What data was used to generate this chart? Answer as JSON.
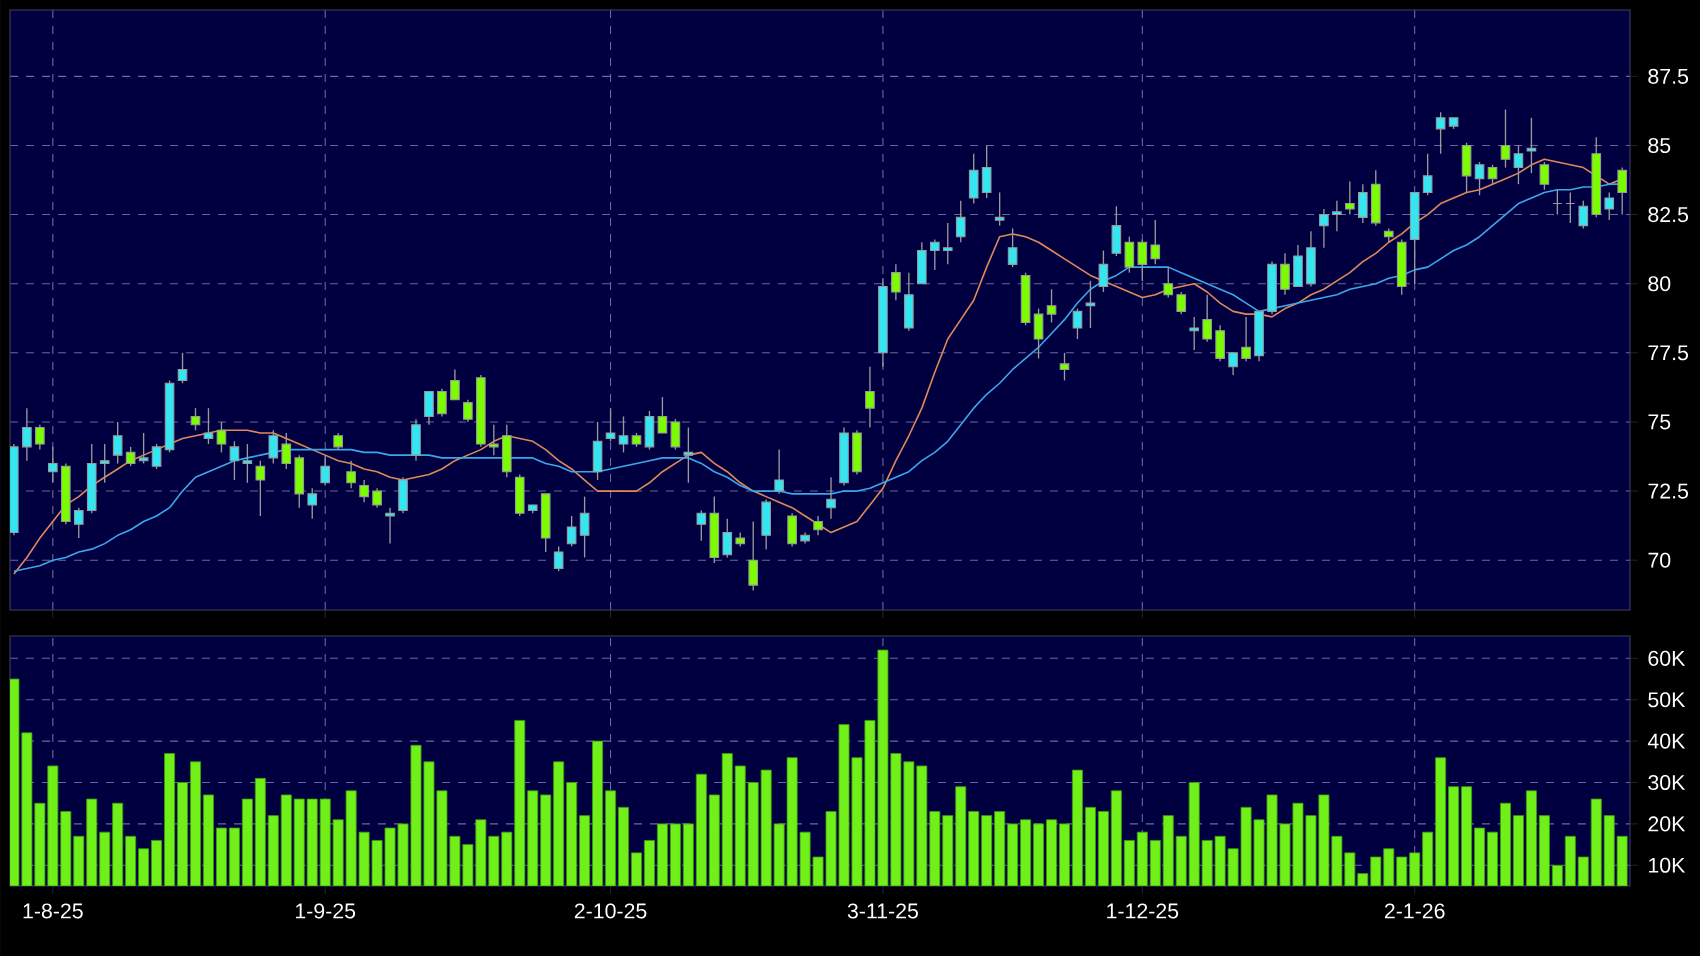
{
  "chart_data": [
    {
      "type": "candlestick",
      "categories": [
        null,
        null,
        null,
        null,
        null,
        null,
        null,
        null,
        null,
        null,
        null,
        null,
        null,
        null,
        null,
        null,
        null,
        null,
        null,
        null,
        null,
        null,
        null,
        null,
        null,
        null,
        null,
        null,
        null,
        null,
        null,
        null,
        null,
        null,
        null,
        null,
        null,
        null,
        null,
        null,
        null,
        null,
        null,
        null,
        null,
        null,
        null,
        null,
        null,
        null,
        null,
        null,
        null,
        null,
        null,
        null,
        null,
        null,
        null,
        null,
        null,
        null,
        null,
        null,
        null,
        null,
        null,
        null,
        null,
        null,
        null,
        null,
        null,
        null,
        null,
        null,
        null,
        null,
        null,
        null,
        null,
        null,
        null,
        null,
        null,
        null,
        null,
        null,
        null,
        null,
        null,
        null,
        null,
        null,
        null,
        null,
        null,
        null,
        null,
        null,
        null,
        null,
        null,
        null,
        null,
        null,
        null,
        null,
        null,
        null,
        null,
        null,
        null,
        null,
        null,
        null,
        null,
        null,
        null,
        null,
        null,
        null,
        null,
        null,
        null
      ],
      "ohlc": [
        [
          71.0,
          74.2,
          70.9,
          74.1
        ],
        [
          74.1,
          75.5,
          73.6,
          74.8
        ],
        [
          74.8,
          74.9,
          74.0,
          74.2
        ],
        [
          73.2,
          74.1,
          72.8,
          73.5
        ],
        [
          73.4,
          73.5,
          71.3,
          71.4
        ],
        [
          71.3,
          71.9,
          70.8,
          71.8
        ],
        [
          71.8,
          74.2,
          71.7,
          73.5
        ],
        [
          73.5,
          74.2,
          72.8,
          73.6
        ],
        [
          73.8,
          75.0,
          73.5,
          74.5
        ],
        [
          73.9,
          74.1,
          73.4,
          73.5
        ],
        [
          73.6,
          74.6,
          73.5,
          73.7
        ],
        [
          73.4,
          74.2,
          73.3,
          74.1
        ],
        [
          74.0,
          76.5,
          73.9,
          76.4
        ],
        [
          76.5,
          77.5,
          76.4,
          76.9
        ],
        [
          75.2,
          75.5,
          74.7,
          74.9
        ],
        [
          74.4,
          75.5,
          74.2,
          74.6
        ],
        [
          74.7,
          75.0,
          73.9,
          74.2
        ],
        [
          73.6,
          74.3,
          72.9,
          74.1
        ],
        [
          73.5,
          74.2,
          72.8,
          73.6
        ],
        [
          73.4,
          73.6,
          71.6,
          72.9
        ],
        [
          73.7,
          74.7,
          73.5,
          74.5
        ],
        [
          74.2,
          74.6,
          73.3,
          73.5
        ],
        [
          73.7,
          73.8,
          71.9,
          72.4
        ],
        [
          72.0,
          72.6,
          71.5,
          72.4
        ],
        [
          72.8,
          73.8,
          72.7,
          73.4
        ],
        [
          74.5,
          74.6,
          74.0,
          74.1
        ],
        [
          73.2,
          73.6,
          72.6,
          72.8
        ],
        [
          72.7,
          72.9,
          72.1,
          72.3
        ],
        [
          72.5,
          72.6,
          71.9,
          72.0
        ],
        [
          71.6,
          71.9,
          70.6,
          71.7
        ],
        [
          71.8,
          73.0,
          71.7,
          72.9
        ],
        [
          73.8,
          75.1,
          73.6,
          74.9
        ],
        [
          75.2,
          76.1,
          74.9,
          76.1
        ],
        [
          76.1,
          76.2,
          75.2,
          75.3
        ],
        [
          76.5,
          76.9,
          75.8,
          75.8
        ],
        [
          75.7,
          75.8,
          75.0,
          75.1
        ],
        [
          76.6,
          76.7,
          74.1,
          74.2
        ],
        [
          74.2,
          74.9,
          73.8,
          74.1
        ],
        [
          74.5,
          74.9,
          73.0,
          73.2
        ],
        [
          73.0,
          73.1,
          71.6,
          71.7
        ],
        [
          71.8,
          72.0,
          71.7,
          72.0
        ],
        [
          72.4,
          72.4,
          70.3,
          70.8
        ],
        [
          69.7,
          70.5,
          69.6,
          70.3
        ],
        [
          70.6,
          71.6,
          70.5,
          71.2
        ],
        [
          70.9,
          72.3,
          70.1,
          71.7
        ],
        [
          73.2,
          75.0,
          72.9,
          74.3
        ],
        [
          74.4,
          75.5,
          74.3,
          74.6
        ],
        [
          74.2,
          75.2,
          73.9,
          74.5
        ],
        [
          74.5,
          74.6,
          74.1,
          74.2
        ],
        [
          74.1,
          75.4,
          74.0,
          75.2
        ],
        [
          75.2,
          75.9,
          74.6,
          74.6
        ],
        [
          75.0,
          75.1,
          74.0,
          74.1
        ],
        [
          73.8,
          74.8,
          72.8,
          73.9
        ],
        [
          71.3,
          71.8,
          70.7,
          71.7
        ],
        [
          71.7,
          72.3,
          69.9,
          70.1
        ],
        [
          70.2,
          71.5,
          70.1,
          71.0
        ],
        [
          70.8,
          71.0,
          70.5,
          70.6
        ],
        [
          70.0,
          71.4,
          68.9,
          69.1
        ],
        [
          70.9,
          72.2,
          70.4,
          72.1
        ],
        [
          72.5,
          74.0,
          72.4,
          72.9
        ],
        [
          71.6,
          71.7,
          70.5,
          70.6
        ],
        [
          70.7,
          71.0,
          70.6,
          70.9
        ],
        [
          71.4,
          71.6,
          70.9,
          71.1
        ],
        [
          71.9,
          73.0,
          71.5,
          72.2
        ],
        [
          72.8,
          74.8,
          72.7,
          74.6
        ],
        [
          74.6,
          74.7,
          73.1,
          73.2
        ],
        [
          76.1,
          77.0,
          74.8,
          75.5
        ],
        [
          77.5,
          80.2,
          77.0,
          79.9
        ],
        [
          80.4,
          80.7,
          79.4,
          79.7
        ],
        [
          78.4,
          80.4,
          78.3,
          79.6
        ],
        [
          80.0,
          81.5,
          80.0,
          81.2
        ],
        [
          81.2,
          81.6,
          80.5,
          81.5
        ],
        [
          81.2,
          82.2,
          80.7,
          81.3
        ],
        [
          81.7,
          83.0,
          81.5,
          82.4
        ],
        [
          83.1,
          84.7,
          82.9,
          84.1
        ],
        [
          83.3,
          85.0,
          83.1,
          84.2
        ],
        [
          82.3,
          83.3,
          82.1,
          82.4
        ],
        [
          80.7,
          82.0,
          80.6,
          81.3
        ],
        [
          80.3,
          80.4,
          78.5,
          78.6
        ],
        [
          78.9,
          79.1,
          77.3,
          78.0
        ],
        [
          79.2,
          79.8,
          78.6,
          78.9
        ],
        [
          77.1,
          77.5,
          76.5,
          76.9
        ],
        [
          78.4,
          79.1,
          78.0,
          79.0
        ],
        [
          79.2,
          80.1,
          78.4,
          79.3
        ],
        [
          79.9,
          81.2,
          79.7,
          80.7
        ],
        [
          81.1,
          82.8,
          81.0,
          82.1
        ],
        [
          81.5,
          81.7,
          80.4,
          80.6
        ],
        [
          81.5,
          81.6,
          80.1,
          80.7
        ],
        [
          81.4,
          82.3,
          80.7,
          80.9
        ],
        [
          80.0,
          80.6,
          79.5,
          79.6
        ],
        [
          79.6,
          79.7,
          78.9,
          79.0
        ],
        [
          78.3,
          78.8,
          77.6,
          78.4
        ],
        [
          78.7,
          79.6,
          77.9,
          78.0
        ],
        [
          78.3,
          78.5,
          77.2,
          77.3
        ],
        [
          77.0,
          77.5,
          76.7,
          77.5
        ],
        [
          77.7,
          78.8,
          77.2,
          77.3
        ],
        [
          77.4,
          79.0,
          77.2,
          79.0
        ],
        [
          79.0,
          80.8,
          78.9,
          80.7
        ],
        [
          80.7,
          81.1,
          79.6,
          79.8
        ],
        [
          79.9,
          81.4,
          79.9,
          81.0
        ],
        [
          80.0,
          81.9,
          79.9,
          81.3
        ],
        [
          82.1,
          82.7,
          81.3,
          82.5
        ],
        [
          82.5,
          83.0,
          81.9,
          82.6
        ],
        [
          82.9,
          83.7,
          82.5,
          82.7
        ],
        [
          82.4,
          83.6,
          82.2,
          83.3
        ],
        [
          83.6,
          84.1,
          82.1,
          82.2
        ],
        [
          81.9,
          82.0,
          81.5,
          81.7
        ],
        [
          81.5,
          81.6,
          79.6,
          79.9
        ],
        [
          81.6,
          83.3,
          80.0,
          83.3
        ],
        [
          83.3,
          84.7,
          83.2,
          83.9
        ],
        [
          85.6,
          86.2,
          84.7,
          86.0
        ],
        [
          85.7,
          86.0,
          85.6,
          86.0
        ],
        [
          85.0,
          85.1,
          83.3,
          83.9
        ],
        [
          83.8,
          84.4,
          83.2,
          84.3
        ],
        [
          84.2,
          84.3,
          83.6,
          83.8
        ],
        [
          85.0,
          86.3,
          84.2,
          84.5
        ],
        [
          84.2,
          85.0,
          83.6,
          84.7
        ],
        [
          84.8,
          86.0,
          84.0,
          84.9
        ],
        [
          84.3,
          84.4,
          83.4,
          83.6
        ],
        [
          82.9,
          83.4,
          82.5,
          82.9
        ],
        [
          82.9,
          83.3,
          82.2,
          82.9
        ],
        [
          82.1,
          83.0,
          82.0,
          82.8
        ],
        [
          84.7,
          85.3,
          82.4,
          82.5
        ],
        [
          82.7,
          83.3,
          82.3,
          83.1
        ],
        [
          84.1,
          84.2,
          82.5,
          83.3
        ]
      ],
      "colors": [
        "#33e6f2",
        "#33e6f2",
        "#7cfc00",
        "#33e6f2",
        "#7cfc00",
        "#33e6f2",
        "#33e6f2",
        "#33e6f2",
        "#33e6f2",
        "#7cfc00",
        "#33e6f2",
        "#33e6f2",
        "#33e6f2",
        "#33e6f2",
        "#7cfc00",
        "#33e6f2",
        "#7cfc00",
        "#33e6f2",
        "#33e6f2",
        "#7cfc00",
        "#33e6f2",
        "#7cfc00",
        "#7cfc00",
        "#33e6f2",
        "#33e6f2",
        "#7cfc00",
        "#7cfc00",
        "#7cfc00",
        "#7cfc00",
        "#33e6f2",
        "#33e6f2",
        "#33e6f2",
        "#33e6f2",
        "#7cfc00",
        "#7cfc00",
        "#7cfc00",
        "#7cfc00",
        "#7cfc00",
        "#7cfc00",
        "#7cfc00",
        "#33e6f2",
        "#7cfc00",
        "#33e6f2",
        "#33e6f2",
        "#33e6f2",
        "#33e6f2",
        "#33e6f2",
        "#33e6f2",
        "#7cfc00",
        "#33e6f2",
        "#7cfc00",
        "#7cfc00",
        "#33e6f2",
        "#33e6f2",
        "#7cfc00",
        "#33e6f2",
        "#7cfc00",
        "#7cfc00",
        "#33e6f2",
        "#33e6f2",
        "#7cfc00",
        "#33e6f2",
        "#7cfc00",
        "#33e6f2",
        "#33e6f2",
        "#7cfc00",
        "#7cfc00",
        "#33e6f2",
        "#7cfc00",
        "#33e6f2",
        "#33e6f2",
        "#33e6f2",
        "#33e6f2",
        "#33e6f2",
        "#33e6f2",
        "#33e6f2",
        "#33e6f2",
        "#33e6f2",
        "#7cfc00",
        "#7cfc00",
        "#7cfc00",
        "#7cfc00",
        "#33e6f2",
        "#33e6f2",
        "#33e6f2",
        "#33e6f2",
        "#7cfc00",
        "#7cfc00",
        "#7cfc00",
        "#7cfc00",
        "#7cfc00",
        "#33e6f2",
        "#7cfc00",
        "#7cfc00",
        "#33e6f2",
        "#7cfc00",
        "#33e6f2",
        "#33e6f2",
        "#7cfc00",
        "#33e6f2",
        "#33e6f2",
        "#33e6f2",
        "#33e6f2",
        "#7cfc00",
        "#33e6f2",
        "#7cfc00",
        "#7cfc00",
        "#7cfc00",
        "#33e6f2",
        "#33e6f2",
        "#33e6f2",
        "#33e6f2",
        "#7cfc00",
        "#33e6f2",
        "#7cfc00",
        "#7cfc00",
        "#33e6f2",
        "#33e6f2",
        "#7cfc00",
        "#a0a0a0",
        "#a0a0a0",
        "#33e6f2",
        "#7cfc00",
        "#33e6f2",
        "#7cfc00"
      ],
      "series": [
        {
          "type": "line",
          "color": "#e0885a",
          "values": [
            69.5,
            70.1,
            70.8,
            71.4,
            72.0,
            72.3,
            72.7,
            73.0,
            73.3,
            73.6,
            73.8,
            74.0,
            74.2,
            74.4,
            74.5,
            74.6,
            74.7,
            74.7,
            74.7,
            74.6,
            74.6,
            74.4,
            74.2,
            74.0,
            73.8,
            73.6,
            73.5,
            73.3,
            73.2,
            73.0,
            72.9,
            73.0,
            73.1,
            73.3,
            73.6,
            73.8,
            74.0,
            74.3,
            74.5,
            74.4,
            74.3,
            74.0,
            73.6,
            73.3,
            72.9,
            72.5,
            72.5,
            72.5,
            72.5,
            72.8,
            73.2,
            73.5,
            73.8,
            73.9,
            73.5,
            73.2,
            72.8,
            72.5,
            72.3,
            72.1,
            71.9,
            71.6,
            71.3,
            71.0,
            71.2,
            71.4,
            72.0,
            72.6,
            73.6,
            74.5,
            75.5,
            76.8,
            78.0,
            78.7,
            79.4,
            80.6,
            81.7,
            81.8,
            81.7,
            81.5,
            81.2,
            80.9,
            80.6,
            80.3,
            80.1,
            79.9,
            79.7,
            79.5,
            79.6,
            79.8,
            79.9,
            80.0,
            79.7,
            79.3,
            79.0,
            78.9,
            78.9,
            78.8,
            79.1,
            79.3,
            79.6,
            79.8,
            80.1,
            80.4,
            80.8,
            81.1,
            81.5,
            81.8,
            82.2,
            82.5,
            82.9,
            83.1,
            83.3,
            83.4,
            83.6,
            83.8,
            84.0,
            84.3,
            84.5,
            84.4,
            84.3,
            84.2,
            83.9,
            83.6,
            83.8
          ]
        },
        {
          "type": "line",
          "color": "#3aa8e8",
          "values": [
            69.6,
            69.7,
            69.8,
            70.0,
            70.1,
            70.3,
            70.4,
            70.6,
            70.9,
            71.1,
            71.4,
            71.6,
            71.9,
            72.5,
            73.0,
            73.2,
            73.4,
            73.6,
            73.7,
            73.8,
            73.9,
            74.0,
            74.0,
            74.0,
            74.0,
            74.0,
            74.0,
            73.9,
            73.9,
            73.8,
            73.8,
            73.8,
            73.8,
            73.7,
            73.7,
            73.7,
            73.7,
            73.7,
            73.7,
            73.7,
            73.7,
            73.5,
            73.4,
            73.2,
            73.2,
            73.2,
            73.3,
            73.4,
            73.5,
            73.6,
            73.7,
            73.7,
            73.7,
            73.5,
            73.2,
            73.0,
            72.7,
            72.5,
            72.5,
            72.5,
            72.4,
            72.4,
            72.4,
            72.4,
            72.5,
            72.5,
            72.6,
            72.8,
            73.0,
            73.2,
            73.6,
            73.9,
            74.3,
            74.9,
            75.5,
            76.0,
            76.4,
            76.9,
            77.3,
            77.7,
            78.2,
            78.7,
            79.3,
            79.8,
            80.1,
            80.3,
            80.6,
            80.6,
            80.6,
            80.6,
            80.4,
            80.2,
            80.0,
            79.8,
            79.6,
            79.3,
            79.0,
            79.1,
            79.2,
            79.3,
            79.4,
            79.5,
            79.6,
            79.8,
            79.9,
            80.0,
            80.2,
            80.3,
            80.5,
            80.6,
            80.9,
            81.2,
            81.4,
            81.7,
            82.1,
            82.5,
            82.9,
            83.1,
            83.3,
            83.4,
            83.4,
            83.5,
            83.5,
            83.6,
            83.6
          ]
        }
      ],
      "ylim": [
        68.2,
        89.9
      ],
      "yticks": [
        70,
        72.5,
        75,
        77.5,
        80,
        82.5,
        85,
        87.5
      ],
      "grid": true,
      "tick_labels": "y"
    },
    {
      "type": "bar",
      "categories": [
        null,
        null,
        null,
        "1-8-25",
        null,
        null,
        null,
        null,
        null,
        null,
        null,
        null,
        null,
        null,
        null,
        null,
        null,
        null,
        null,
        null,
        null,
        null,
        null,
        null,
        "1-9-25",
        null,
        null,
        null,
        null,
        null,
        null,
        null,
        null,
        null,
        null,
        null,
        null,
        null,
        null,
        null,
        null,
        null,
        null,
        null,
        null,
        null,
        "2-10-25",
        null,
        null,
        null,
        null,
        null,
        null,
        null,
        null,
        null,
        null,
        null,
        null,
        null,
        null,
        null,
        null,
        null,
        null,
        null,
        null,
        "3-11-25",
        null,
        null,
        null,
        null,
        null,
        null,
        null,
        null,
        null,
        null,
        null,
        null,
        null,
        null,
        null,
        null,
        null,
        null,
        null,
        "1-12-25",
        null,
        null,
        null,
        null,
        null,
        null,
        null,
        null,
        null,
        null,
        null,
        null,
        null,
        null,
        null,
        null,
        null,
        null,
        null,
        null,
        "2-1-26",
        null,
        null,
        null,
        null,
        null,
        null,
        null,
        null,
        null,
        null,
        null,
        null,
        null,
        null,
        null,
        null
      ],
      "values": [
        55000,
        42000,
        25000,
        34000,
        23000,
        17000,
        26000,
        18000,
        25000,
        17000,
        14000,
        16000,
        37000,
        30000,
        35000,
        27000,
        19000,
        19000,
        26000,
        31000,
        22000,
        27000,
        26000,
        26000,
        26000,
        21000,
        28000,
        18000,
        16000,
        19000,
        20000,
        39000,
        35000,
        28000,
        17000,
        15000,
        21000,
        17000,
        18000,
        45000,
        28000,
        27000,
        35000,
        30000,
        22000,
        40000,
        28000,
        24000,
        13000,
        16000,
        20000,
        20000,
        20000,
        32000,
        27000,
        37000,
        34000,
        30000,
        33000,
        20000,
        36000,
        18000,
        12000,
        23000,
        44000,
        36000,
        45000,
        62000,
        37000,
        35000,
        34000,
        23000,
        22000,
        29000,
        23000,
        22000,
        23000,
        20000,
        21000,
        20000,
        21000,
        20000,
        33000,
        24000,
        23000,
        28000,
        16000,
        18000,
        16000,
        22000,
        17000,
        30000,
        16000,
        17000,
        14000,
        24000,
        21000,
        27000,
        20000,
        25000,
        22000,
        27000,
        17000,
        13000,
        8000,
        12000,
        14000,
        12000,
        13000,
        18000,
        36000,
        29000,
        29000,
        19000,
        18000,
        25000,
        22000,
        28000,
        22000,
        10000,
        17000,
        12000,
        26000,
        22000,
        17000
      ],
      "color": "#70f018",
      "ylim": [
        5000,
        65400
      ],
      "yticks": [
        {
          "value": 10000,
          "label": "10K"
        },
        {
          "value": 20000,
          "label": "20K"
        },
        {
          "value": 30000,
          "label": "30K"
        },
        {
          "value": 40000,
          "label": "40K"
        },
        {
          "value": 50000,
          "label": "50K"
        },
        {
          "value": 60000,
          "label": "60K"
        }
      ],
      "grid": true
    }
  ]
}
